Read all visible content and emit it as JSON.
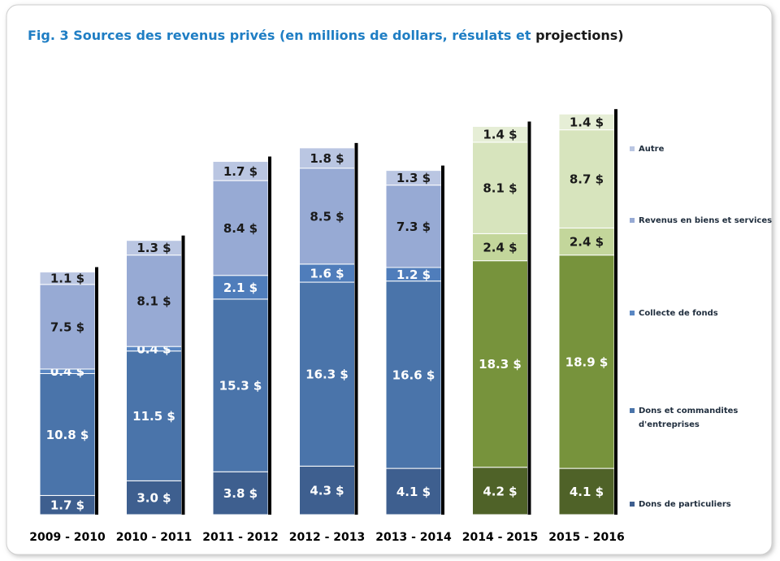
{
  "chart_data": {
    "type": "stacked_bar",
    "title": "Fig. 3 Sources des revenus privés (en millions de dollars, résulats et",
    "title_suffix": "projections)",
    "categories": [
      "2009 - 2010",
      "2010 - 2011",
      "2011 - 2012",
      "2012 - 2013",
      "2013 - 2014",
      "2014 - 2015",
      "2015 - 2016"
    ],
    "ylim": [
      0,
      42
    ],
    "series": [
      {
        "name": "Dons de particuliers",
        "colors": [
          "#3e5f8f",
          "#3e5f8f",
          "#3e5f8f",
          "#3e5f8f",
          "#3e5f8f",
          "#4f6228",
          "#4f6228"
        ],
        "values": [
          1.7,
          3.0,
          3.8,
          4.3,
          4.1,
          4.2,
          4.1
        ],
        "value_labels": [
          "1.7 $",
          "3.0 $",
          "3.8 $",
          "4.3 $",
          "4.1 $",
          "4.2 $",
          "4.1 $"
        ]
      },
      {
        "name": "Dons et commandites d'entreprises",
        "colors": [
          "#4a74aa",
          "#4a74aa",
          "#4a74aa",
          "#4a74aa",
          "#4a74aa",
          "#77933c",
          "#77933c"
        ],
        "values": [
          10.8,
          11.5,
          15.3,
          16.3,
          16.6,
          18.3,
          18.9
        ],
        "value_labels": [
          "10.8 $",
          "11.5 $",
          "15.3 $",
          "16.3 $",
          "16.6 $",
          "18.3 $",
          "18.9 $"
        ]
      },
      {
        "name": "Collecte de fonds",
        "colors": [
          "#5a87c3",
          "#5a87c3",
          "#4f7dbb",
          "#4f7dbb",
          "#4f7dbb",
          "#c3d69b",
          "#c3d69b"
        ],
        "values": [
          0.4,
          0.4,
          2.1,
          1.6,
          1.2,
          2.4,
          2.4
        ],
        "value_labels": [
          "0.4 $",
          "0.4 $",
          "2.1 $",
          "1.6 $",
          "1.2 $",
          "2.4 $",
          "2.4 $"
        ]
      },
      {
        "name": "Revenus en biens et services",
        "colors": [
          "#97aad4",
          "#97aad4",
          "#97aad4",
          "#97aad4",
          "#97aad4",
          "#d7e4bd",
          "#d7e4bd"
        ],
        "values": [
          7.5,
          8.1,
          8.4,
          8.5,
          7.3,
          8.1,
          8.7
        ],
        "value_labels": [
          "7.5 $",
          "8.1 $",
          "8.4 $",
          "8.5 $",
          "7.3 $",
          "8.1 $",
          "8.7 $"
        ]
      },
      {
        "name": "Autre",
        "colors": [
          "#bac6e2",
          "#bac6e2",
          "#bac6e2",
          "#bac6e2",
          "#bac6e2",
          "#e6eed6",
          "#e6eed6"
        ],
        "values": [
          1.1,
          1.3,
          1.7,
          1.8,
          1.3,
          1.4,
          1.4
        ],
        "value_labels": [
          "1.1 $",
          "1.3 $",
          "1.7 $",
          "1.8 $",
          "1.3 $",
          "1.4 $",
          "1.4 $"
        ]
      }
    ]
  }
}
